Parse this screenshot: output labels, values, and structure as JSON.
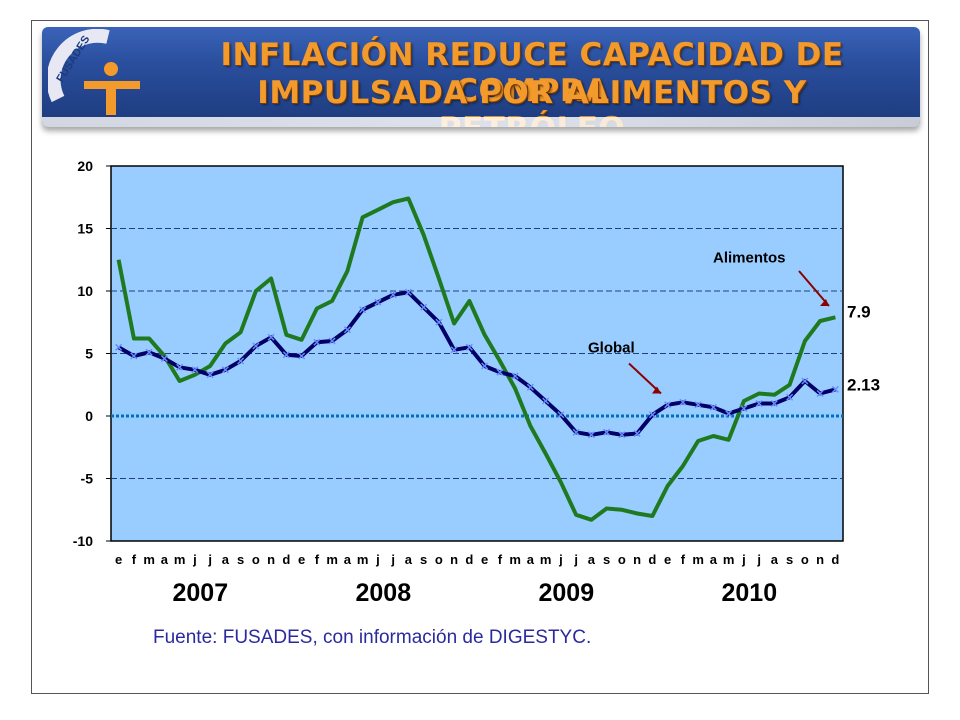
{
  "header": {
    "logo_text": "FUSADES",
    "title_line1": "INFLACIÓN REDUCE CAPACIDAD DE COMPRA",
    "title_line2": "IMPULSADA POR ALIMENTOS Y PETRÓLEO"
  },
  "source": "Fuente: FUSADES, con información de DIGESTYC.",
  "colors": {
    "plot_bg": "#99ccff",
    "alimentos": "#1f7a1f",
    "global": "#000066",
    "global_marker": "#6a8cff",
    "zero_line": "#0070c0",
    "arrow": "#8b0000",
    "title": "#f39a2c"
  },
  "chart_data": {
    "type": "line",
    "title": "",
    "xlabel": "",
    "ylabel": "",
    "ylim": [
      -10,
      20
    ],
    "yticks": [
      "20",
      "15",
      "10",
      "5",
      "0",
      "-5",
      "-10"
    ],
    "grid": "dashed horizontal",
    "month_labels": [
      "e",
      "f",
      "m",
      "a",
      "m",
      "j",
      "j",
      "a",
      "s",
      "o",
      "n",
      "d",
      "e",
      "f",
      "m",
      "a",
      "m",
      "j",
      "j",
      "a",
      "s",
      "o",
      "n",
      "d",
      "e",
      "f",
      "m",
      "a",
      "m",
      "j",
      "j",
      "a",
      "s",
      "o",
      "n",
      "d",
      "e",
      "f",
      "m",
      "a",
      "m",
      "j",
      "j",
      "a",
      "s",
      "o",
      "n",
      "d"
    ],
    "years": [
      "2007",
      "2008",
      "2009",
      "2010"
    ],
    "series": [
      {
        "name": "Alimentos",
        "values": [
          12.5,
          6.2,
          6.2,
          4.8,
          2.8,
          3.3,
          4.0,
          5.8,
          6.7,
          10.0,
          11.0,
          6.5,
          6.1,
          8.6,
          9.2,
          11.6,
          15.9,
          16.5,
          17.1,
          17.4,
          14.5,
          11.0,
          7.4,
          9.2,
          6.5,
          4.4,
          2.2,
          -0.8,
          -3.0,
          -5.3,
          -7.9,
          -8.3,
          -7.4,
          -7.5,
          -7.8,
          -8.0,
          -5.6,
          -4.0,
          -2.0,
          -1.6,
          -1.9,
          1.2,
          1.8,
          1.7,
          2.5,
          6.0,
          7.6,
          7.9
        ],
        "end_label": "7.9",
        "annotation": "Alimentos"
      },
      {
        "name": "Global",
        "values": [
          5.5,
          4.8,
          5.1,
          4.6,
          3.9,
          3.7,
          3.3,
          3.7,
          4.4,
          5.6,
          6.3,
          4.9,
          4.8,
          5.9,
          6.0,
          6.9,
          8.5,
          9.1,
          9.7,
          9.9,
          8.7,
          7.5,
          5.3,
          5.5,
          4.0,
          3.5,
          3.2,
          2.3,
          1.2,
          0.1,
          -1.3,
          -1.5,
          -1.3,
          -1.5,
          -1.4,
          0.1,
          0.9,
          1.1,
          0.9,
          0.7,
          0.2,
          0.6,
          1.0,
          1.0,
          1.5,
          2.8,
          1.8,
          2.13
        ],
        "end_label": "2.13",
        "annotation": "Global"
      }
    ]
  }
}
